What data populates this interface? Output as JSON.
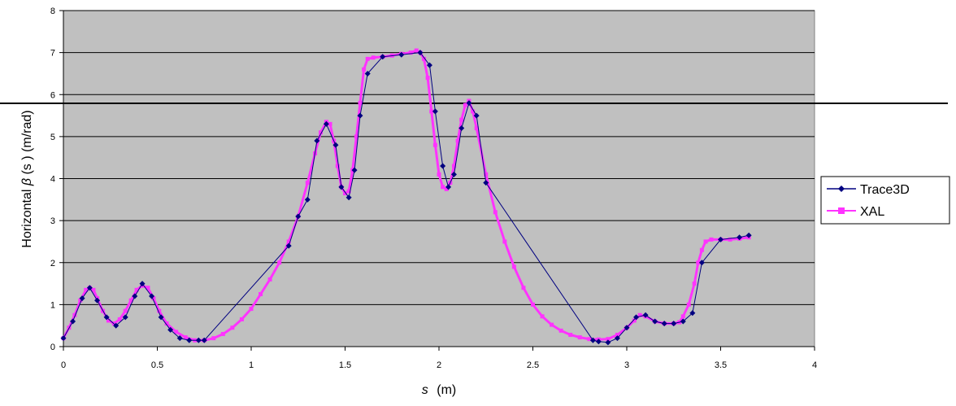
{
  "chart_data": {
    "type": "line",
    "title": "",
    "xlabel_var": "s",
    "xlabel_unit": "(m)",
    "ylabel_prefix": "Horizontal",
    "ylabel_symbol": "β",
    "ylabel_suffix": "(s ) (m/rad)",
    "xlim": [
      0,
      4
    ],
    "ylim": [
      0,
      8
    ],
    "xticks": [
      "0",
      "0.5",
      "1",
      "1.5",
      "2",
      "2.5",
      "3",
      "3.5",
      "4"
    ],
    "yticks": [
      "0",
      "1",
      "2",
      "3",
      "4",
      "5",
      "6",
      "7",
      "8"
    ],
    "grid": true,
    "plot_background": "#c0c0c0",
    "legend_position": "right",
    "series": [
      {
        "name": "Trace3D",
        "color": "#000080",
        "marker": "diamond",
        "x": [
          0,
          0.05,
          0.1,
          0.14,
          0.18,
          0.23,
          0.28,
          0.33,
          0.38,
          0.42,
          0.47,
          0.52,
          0.57,
          0.62,
          0.67,
          0.72,
          0.75,
          1.2,
          1.25,
          1.3,
          1.35,
          1.4,
          1.45,
          1.48,
          1.52,
          1.55,
          1.58,
          1.62,
          1.7,
          1.8,
          1.9,
          1.95,
          1.98,
          2.02,
          2.05,
          2.08,
          2.12,
          2.16,
          2.2,
          2.25,
          2.82,
          2.85,
          2.9,
          2.95,
          3.0,
          3.05,
          3.1,
          3.15,
          3.2,
          3.25,
          3.3,
          3.35,
          3.4,
          3.5,
          3.6,
          3.65
        ],
        "y": [
          0.2,
          0.6,
          1.15,
          1.4,
          1.1,
          0.7,
          0.5,
          0.7,
          1.2,
          1.5,
          1.2,
          0.7,
          0.4,
          0.2,
          0.15,
          0.15,
          0.15,
          2.4,
          3.1,
          3.5,
          4.9,
          5.3,
          4.8,
          3.8,
          3.55,
          4.2,
          5.5,
          6.5,
          6.9,
          6.95,
          7.0,
          6.7,
          5.6,
          4.3,
          3.8,
          4.1,
          5.2,
          5.8,
          5.5,
          3.9,
          0.15,
          0.12,
          0.1,
          0.2,
          0.45,
          0.7,
          0.75,
          0.6,
          0.55,
          0.55,
          0.6,
          0.8,
          2.0,
          2.55,
          2.6,
          2.65
        ]
      },
      {
        "name": "XAL",
        "color": "#ff33ff",
        "marker": "square",
        "x": [
          0,
          0.03,
          0.06,
          0.09,
          0.12,
          0.14,
          0.16,
          0.18,
          0.21,
          0.24,
          0.27,
          0.3,
          0.33,
          0.36,
          0.39,
          0.42,
          0.45,
          0.48,
          0.51,
          0.55,
          0.6,
          0.65,
          0.7,
          0.75,
          0.8,
          0.85,
          0.9,
          0.95,
          1.0,
          1.05,
          1.1,
          1.15,
          1.2,
          1.25,
          1.3,
          1.34,
          1.37,
          1.4,
          1.42,
          1.44,
          1.46,
          1.48,
          1.5,
          1.52,
          1.54,
          1.56,
          1.58,
          1.6,
          1.62,
          1.65,
          1.7,
          1.75,
          1.8,
          1.85,
          1.88,
          1.9,
          1.92,
          1.94,
          1.96,
          1.98,
          2.0,
          2.02,
          2.04,
          2.06,
          2.08,
          2.1,
          2.12,
          2.14,
          2.16,
          2.18,
          2.2,
          2.25,
          2.3,
          2.35,
          2.4,
          2.45,
          2.5,
          2.55,
          2.6,
          2.65,
          2.7,
          2.75,
          2.8,
          2.85,
          2.9,
          2.95,
          3.0,
          3.04,
          3.07,
          3.1,
          3.15,
          3.2,
          3.25,
          3.28,
          3.3,
          3.33,
          3.36,
          3.38,
          3.4,
          3.42,
          3.45,
          3.5,
          3.55,
          3.6,
          3.65
        ],
        "y": [
          0.2,
          0.45,
          0.75,
          1.1,
          1.35,
          1.4,
          1.35,
          1.15,
          0.85,
          0.62,
          0.55,
          0.65,
          0.85,
          1.1,
          1.35,
          1.45,
          1.4,
          1.15,
          0.85,
          0.55,
          0.35,
          0.22,
          0.15,
          0.15,
          0.2,
          0.3,
          0.45,
          0.65,
          0.9,
          1.25,
          1.6,
          2.0,
          2.5,
          3.1,
          3.9,
          4.6,
          5.1,
          5.35,
          5.3,
          4.9,
          4.3,
          3.8,
          3.65,
          3.7,
          4.2,
          5.0,
          5.8,
          6.6,
          6.85,
          6.88,
          6.9,
          6.93,
          6.97,
          7.0,
          7.05,
          7.0,
          6.85,
          6.4,
          5.6,
          4.8,
          4.1,
          3.8,
          3.75,
          3.9,
          4.3,
          4.9,
          5.4,
          5.75,
          5.85,
          5.6,
          5.2,
          4.1,
          3.2,
          2.5,
          1.9,
          1.4,
          1.0,
          0.72,
          0.52,
          0.38,
          0.28,
          0.22,
          0.18,
          0.17,
          0.18,
          0.28,
          0.45,
          0.62,
          0.75,
          0.72,
          0.6,
          0.55,
          0.55,
          0.58,
          0.72,
          1.0,
          1.5,
          2.0,
          2.3,
          2.5,
          2.55,
          2.55,
          2.55,
          2.57,
          2.6
        ]
      }
    ]
  }
}
